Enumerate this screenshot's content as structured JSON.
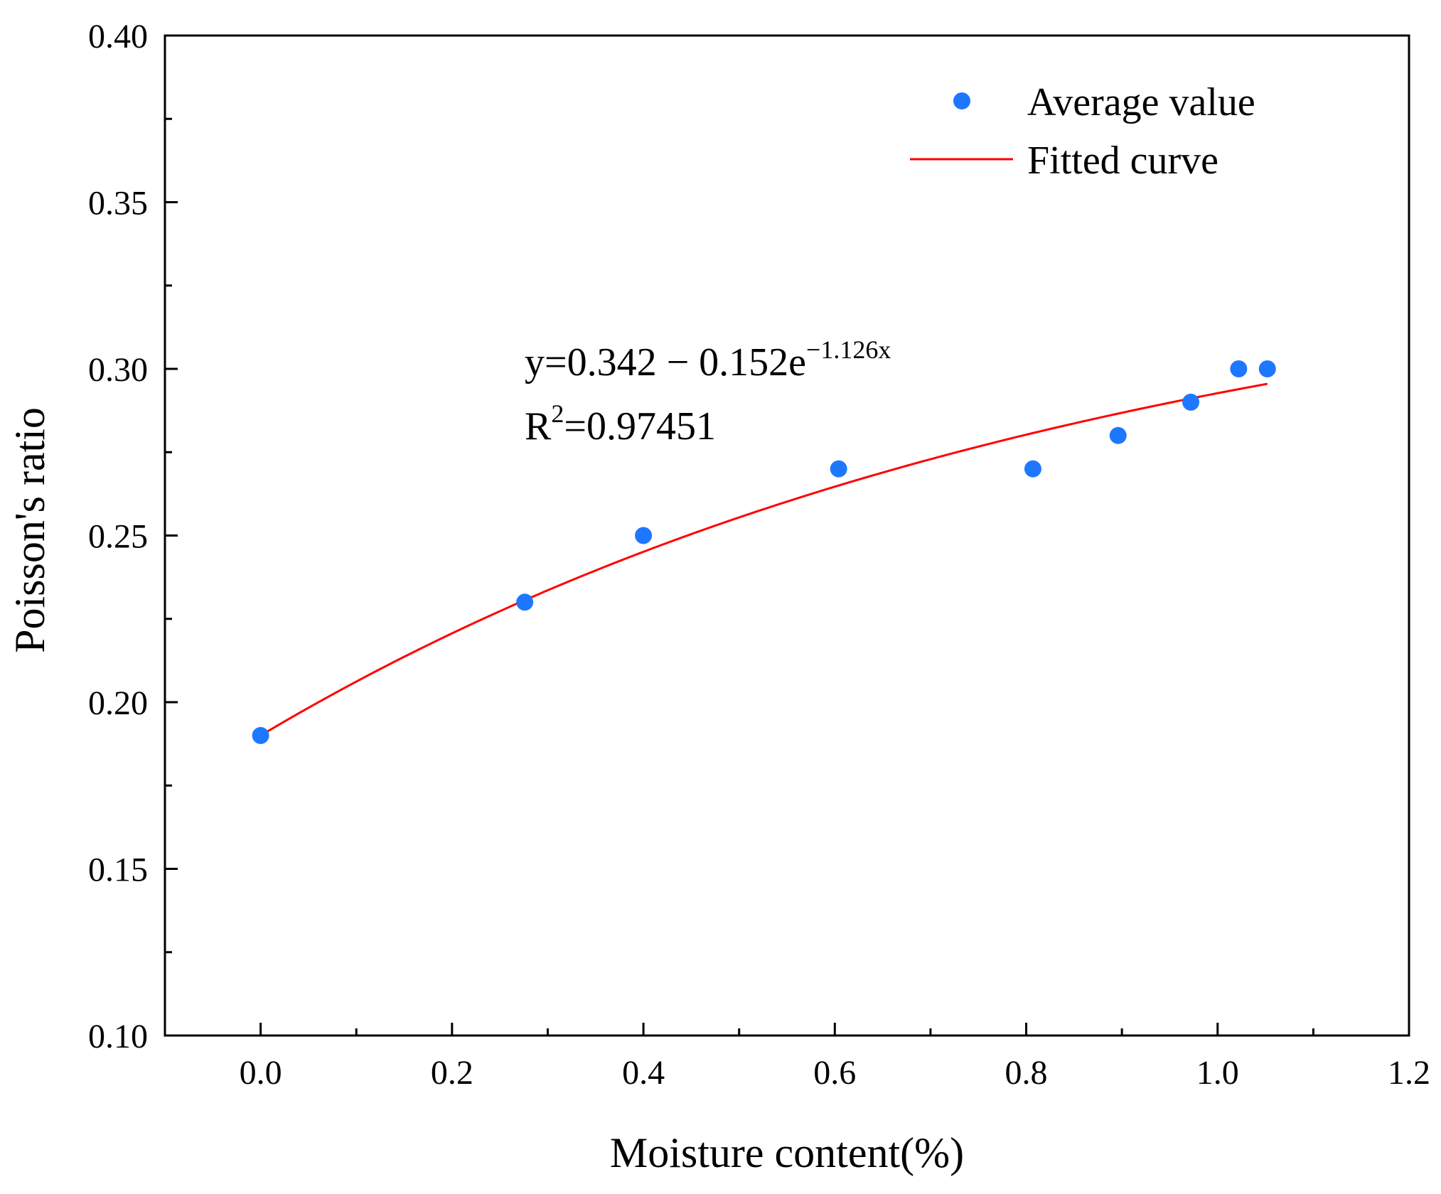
{
  "chart_data": {
    "type": "scatter",
    "title": "",
    "xlabel": "Moisture content(%)",
    "ylabel": "Poisson's ratio",
    "xlim": [
      -0.1,
      1.2
    ],
    "ylim": [
      0.1,
      0.4
    ],
    "x_ticks": [
      0.0,
      0.2,
      0.4,
      0.6,
      0.8,
      1.0,
      1.2
    ],
    "x_tick_labels": [
      "0.0",
      "0.2",
      "0.4",
      "0.6",
      "0.8",
      "1.0",
      "1.2"
    ],
    "y_ticks": [
      0.1,
      0.15,
      0.2,
      0.25,
      0.3,
      0.35,
      0.4
    ],
    "y_tick_labels": [
      "0.10",
      "0.15",
      "0.20",
      "0.25",
      "0.30",
      "0.35",
      "0.40"
    ],
    "grid": false,
    "series": [
      {
        "name": "Average value",
        "kind": "scatter",
        "color": "#1E78FF",
        "x": [
          0.0,
          0.276,
          0.4,
          0.604,
          0.807,
          0.896,
          0.972,
          1.022,
          1.052
        ],
        "y": [
          0.19,
          0.23,
          0.25,
          0.27,
          0.27,
          0.28,
          0.29,
          0.3,
          0.3
        ]
      },
      {
        "name": "Fitted curve",
        "kind": "line",
        "color": "#FF0000",
        "equation": {
          "a": 0.342,
          "b": 0.152,
          "c": 1.126
        },
        "x_range": [
          0.0,
          1.052
        ]
      }
    ],
    "legend": {
      "placement": "top-right",
      "entries": [
        "Average value",
        "Fitted curve"
      ]
    },
    "annotation": {
      "equation_main": "y=0.342 − 0.152e",
      "equation_exp": "−1.126x",
      "r2_prefix": "R",
      "r2_sup": "2",
      "r2_value": "=0.97451"
    }
  }
}
